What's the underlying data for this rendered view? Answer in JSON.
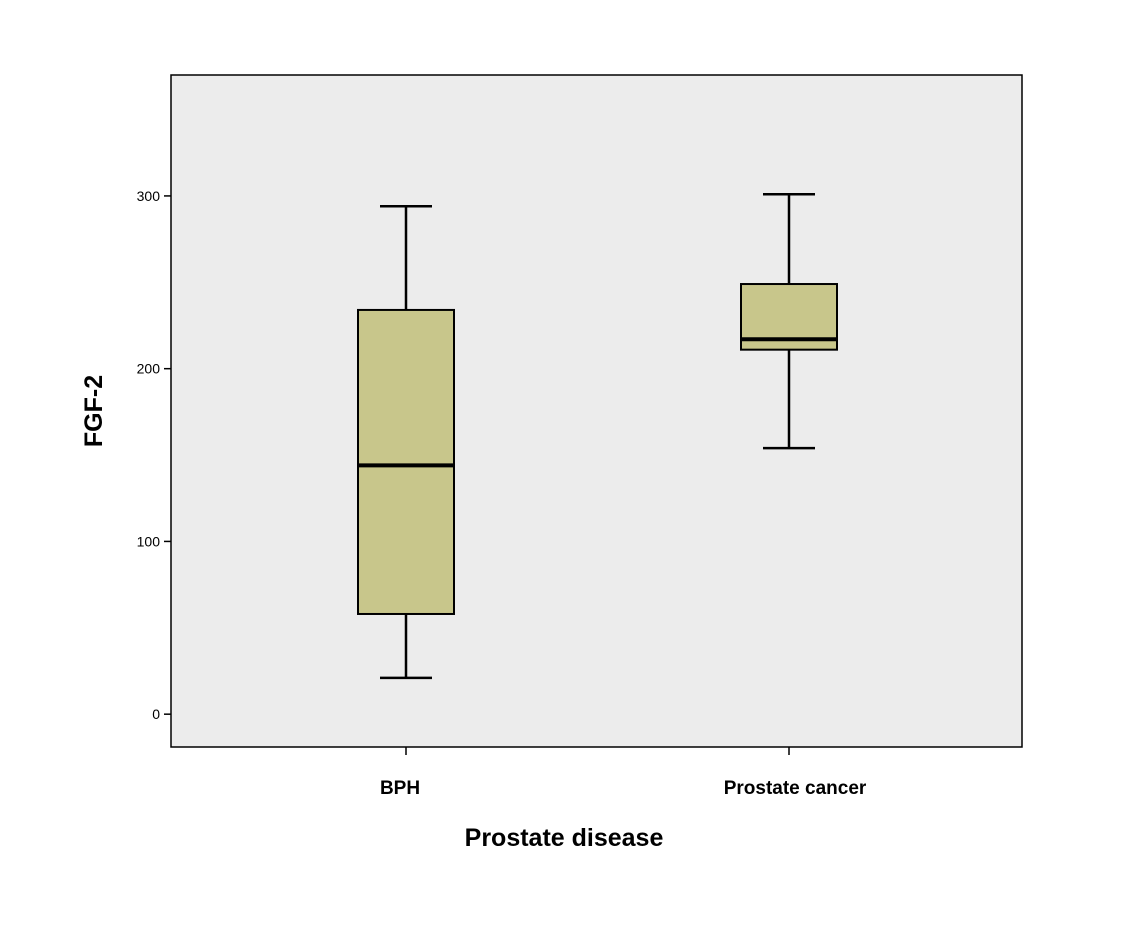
{
  "chart_data": {
    "type": "boxplot",
    "xlabel": "Prostate disease",
    "ylabel": "FGF-2",
    "ylim": [
      -19,
      370
    ],
    "yticks": [
      0,
      100,
      200,
      300
    ],
    "categories": [
      "BPH",
      "Prostate cancer"
    ],
    "boxes": [
      {
        "name": "BPH",
        "min": 21,
        "q1": 58,
        "median": 144,
        "q3": 234,
        "max": 294
      },
      {
        "name": "Prostate cancer",
        "min": 154,
        "q1": 211,
        "median": 217,
        "q3": 249,
        "max": 301
      }
    ],
    "colors": {
      "box_fill": "#c8c68b",
      "plot_bg": "#ececec",
      "line": "#000000"
    }
  }
}
